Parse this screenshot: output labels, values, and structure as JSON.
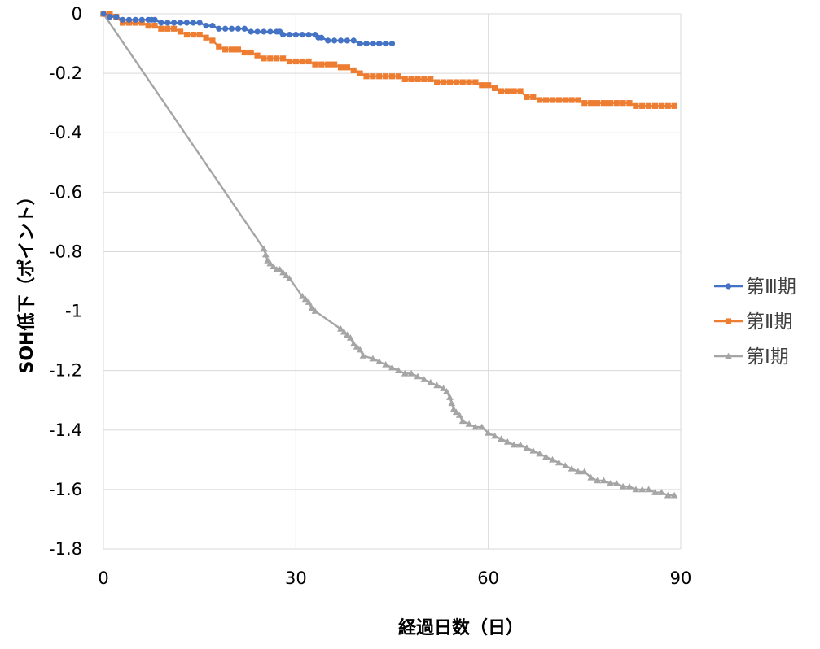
{
  "chart_data": {
    "type": "line",
    "xlabel": "経過日数（日）",
    "ylabel": "SOH低下（ポイント）",
    "xlim": [
      0,
      90
    ],
    "ylim": [
      -1.8,
      0
    ],
    "x_ticks": [
      0,
      30,
      60,
      90
    ],
    "x_tick_labels": [
      "0",
      "30",
      "60",
      "90"
    ],
    "y_ticks": [
      0,
      -0.2,
      -0.4,
      -0.6,
      -0.8,
      -1,
      -1.2,
      -1.4,
      -1.6,
      -1.8
    ],
    "y_tick_labels": [
      "0",
      "-0.2",
      "-0.4",
      "-0.6",
      "-0.8",
      "-1",
      "-1.2",
      "-1.4",
      "-1.6",
      "-1.8"
    ],
    "grid": "horizontal and vertical",
    "legend_position": "right",
    "series": [
      {
        "name": "第Ⅲ期",
        "color": "#4472C4",
        "marker": "circle",
        "x": [
          0,
          1,
          2,
          3,
          4,
          5,
          6,
          7,
          7.5,
          8,
          9,
          10,
          11,
          12,
          13,
          14,
          15,
          16,
          17,
          18,
          19,
          20,
          21,
          22,
          23,
          24,
          25,
          26,
          27,
          27.5,
          28,
          29,
          30,
          31,
          32,
          33,
          33.5,
          34,
          35,
          36,
          37,
          38,
          39,
          40,
          41,
          42,
          43,
          44,
          45
        ],
        "y": [
          0,
          -0.01,
          -0.01,
          -0.02,
          -0.02,
          -0.02,
          -0.02,
          -0.02,
          -0.02,
          -0.02,
          -0.03,
          -0.03,
          -0.03,
          -0.03,
          -0.03,
          -0.03,
          -0.03,
          -0.04,
          -0.04,
          -0.05,
          -0.05,
          -0.05,
          -0.05,
          -0.05,
          -0.06,
          -0.06,
          -0.06,
          -0.06,
          -0.06,
          -0.06,
          -0.07,
          -0.07,
          -0.07,
          -0.07,
          -0.07,
          -0.07,
          -0.08,
          -0.08,
          -0.09,
          -0.09,
          -0.09,
          -0.09,
          -0.09,
          -0.1,
          -0.1,
          -0.1,
          -0.1,
          -0.1,
          -0.1
        ]
      },
      {
        "name": "第Ⅱ期",
        "color": "#ED7D31",
        "marker": "square",
        "x": [
          0,
          1,
          2,
          3,
          4,
          5,
          6,
          7,
          8,
          9,
          10,
          11,
          12,
          13,
          14,
          15,
          16,
          17,
          18,
          19,
          20,
          21,
          22,
          23,
          24,
          25,
          26,
          27,
          28,
          29,
          30,
          31,
          32,
          33,
          34,
          35,
          36,
          37,
          38,
          39,
          40,
          41,
          42,
          43,
          44,
          45,
          46,
          47,
          48,
          49,
          50,
          51,
          52,
          53,
          54,
          55,
          56,
          57,
          58,
          59,
          60,
          61,
          62,
          63,
          64,
          65,
          66,
          67,
          68,
          69,
          70,
          71,
          72,
          73,
          74,
          75,
          76,
          77,
          78,
          79,
          80,
          81,
          82,
          83,
          84,
          85,
          86,
          87,
          88,
          89
        ],
        "y": [
          0,
          0,
          -0.01,
          -0.03,
          -0.03,
          -0.03,
          -0.03,
          -0.04,
          -0.04,
          -0.05,
          -0.05,
          -0.05,
          -0.06,
          -0.07,
          -0.07,
          -0.07,
          -0.08,
          -0.09,
          -0.11,
          -0.12,
          -0.12,
          -0.12,
          -0.13,
          -0.13,
          -0.14,
          -0.15,
          -0.15,
          -0.15,
          -0.15,
          -0.16,
          -0.16,
          -0.16,
          -0.16,
          -0.17,
          -0.17,
          -0.17,
          -0.17,
          -0.18,
          -0.18,
          -0.19,
          -0.2,
          -0.21,
          -0.21,
          -0.21,
          -0.21,
          -0.21,
          -0.21,
          -0.22,
          -0.22,
          -0.22,
          -0.22,
          -0.22,
          -0.23,
          -0.23,
          -0.23,
          -0.23,
          -0.23,
          -0.23,
          -0.23,
          -0.24,
          -0.24,
          -0.25,
          -0.26,
          -0.26,
          -0.26,
          -0.26,
          -0.28,
          -0.28,
          -0.29,
          -0.29,
          -0.29,
          -0.29,
          -0.29,
          -0.29,
          -0.29,
          -0.3,
          -0.3,
          -0.3,
          -0.3,
          -0.3,
          -0.3,
          -0.3,
          -0.3,
          -0.31,
          -0.31,
          -0.31,
          -0.31,
          -0.31,
          -0.31,
          -0.31
        ]
      },
      {
        "name": "第Ⅰ期",
        "color": "#A5A5A5",
        "marker": "triangle",
        "x": [
          0,
          25,
          25.3,
          25.6,
          26,
          26.5,
          27,
          27.5,
          28,
          28.5,
          29,
          31,
          31.5,
          32,
          32.5,
          33,
          37,
          37.5,
          38,
          38.5,
          39,
          39.5,
          40,
          40.5,
          42,
          43,
          44,
          45,
          46,
          47,
          48,
          49,
          50,
          51,
          52,
          53,
          53.5,
          54,
          54.3,
          54.6,
          55,
          55.5,
          56,
          57,
          58,
          59,
          60,
          61,
          62,
          63,
          64,
          65,
          66,
          67,
          68,
          69,
          70,
          71,
          72,
          73,
          74,
          75,
          76,
          77,
          78,
          79,
          80,
          81,
          82,
          83,
          84,
          85,
          86,
          87,
          88,
          89
        ],
        "y": [
          0,
          -0.79,
          -0.81,
          -0.83,
          -0.84,
          -0.85,
          -0.86,
          -0.86,
          -0.87,
          -0.88,
          -0.89,
          -0.95,
          -0.96,
          -0.97,
          -0.99,
          -1.0,
          -1.06,
          -1.07,
          -1.08,
          -1.09,
          -1.11,
          -1.12,
          -1.13,
          -1.15,
          -1.16,
          -1.17,
          -1.18,
          -1.19,
          -1.2,
          -1.21,
          -1.21,
          -1.22,
          -1.23,
          -1.24,
          -1.25,
          -1.26,
          -1.27,
          -1.29,
          -1.31,
          -1.33,
          -1.34,
          -1.35,
          -1.37,
          -1.38,
          -1.39,
          -1.39,
          -1.41,
          -1.42,
          -1.43,
          -1.44,
          -1.45,
          -1.45,
          -1.46,
          -1.47,
          -1.48,
          -1.49,
          -1.5,
          -1.51,
          -1.52,
          -1.53,
          -1.54,
          -1.54,
          -1.56,
          -1.57,
          -1.57,
          -1.58,
          -1.58,
          -1.59,
          -1.59,
          -1.6,
          -1.6,
          -1.6,
          -1.61,
          -1.61,
          -1.62,
          -1.62
        ]
      }
    ]
  }
}
